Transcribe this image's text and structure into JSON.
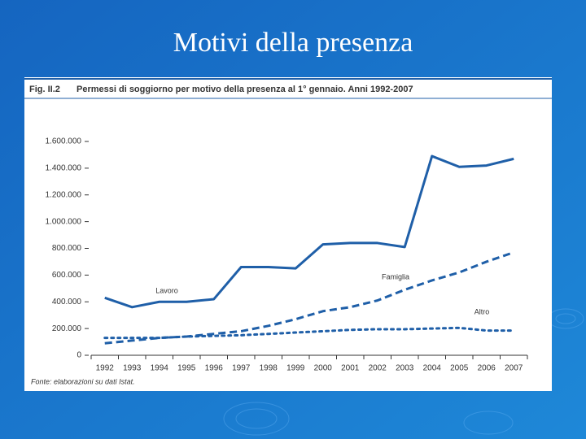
{
  "slide_title": "Motivi della presenza",
  "chart_data": {
    "type": "line",
    "figure_label": "Fig. II.2",
    "title": "Permessi di soggiorno per motivo della presenza al 1° gennaio. Anni 1992-2007",
    "source": "Fonte: elaborazioni su dati Istat.",
    "categories": [
      "1992",
      "1993",
      "1994",
      "1995",
      "1996",
      "1997",
      "1998",
      "1999",
      "2000",
      "2001",
      "2002",
      "2003",
      "2004",
      "2005",
      "2006",
      "2007"
    ],
    "series": [
      {
        "name": "Lavoro",
        "color": "#1f5fa8",
        "dash": "solid",
        "values": [
          430000,
          360000,
          400000,
          400000,
          420000,
          660000,
          660000,
          650000,
          830000,
          840000,
          840000,
          810000,
          1490000,
          1410000,
          1420000,
          1470000
        ]
      },
      {
        "name": "Famiglia",
        "color": "#1f5fa8",
        "dash": "dashed",
        "values": [
          90000,
          110000,
          130000,
          140000,
          160000,
          180000,
          220000,
          270000,
          330000,
          360000,
          410000,
          490000,
          560000,
          620000,
          700000,
          770000
        ]
      },
      {
        "name": "Altro",
        "color": "#1f5fa8",
        "dash": "dotted",
        "values": [
          130000,
          130000,
          130000,
          140000,
          145000,
          150000,
          160000,
          170000,
          180000,
          190000,
          195000,
          195000,
          200000,
          205000,
          185000,
          185000
        ]
      }
    ],
    "ylim": [
      0,
      1600000
    ],
    "yticks": [
      0,
      {
        "value": 200000,
        "label": "200.000"
      },
      {
        "value": 400000,
        "label": "400.000"
      },
      {
        "value": 600000,
        "label": "600.000"
      },
      {
        "value": 800000,
        "label": "800.000"
      },
      {
        "value": 1000000,
        "label": "1.000.000"
      },
      {
        "value": 1200000,
        "label": "1.200.000"
      },
      {
        "value": 1400000,
        "label": "1.400.000"
      },
      {
        "value": 1600000,
        "label": "1.600.000"
      }
    ],
    "grid": false
  }
}
